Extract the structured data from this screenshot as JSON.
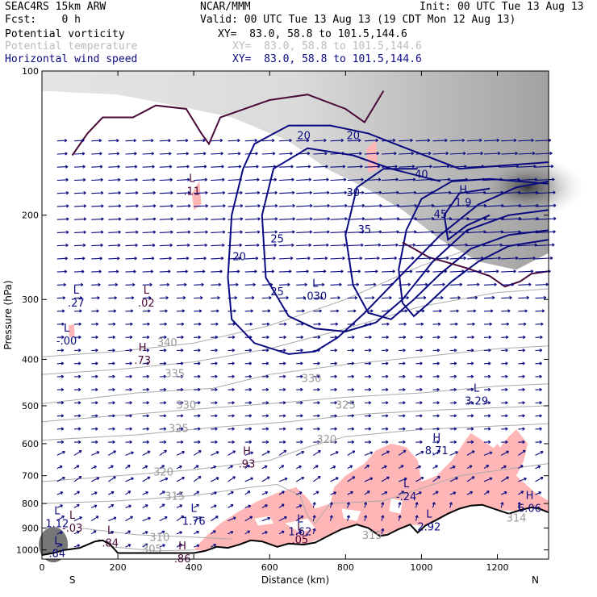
{
  "header": {
    "model": "SEAC4RS 15km ARW",
    "org": "NCAR/MMM",
    "init": "Init: 00 UTC Tue 13 Aug 13",
    "fcst": "Fcst:    0 h",
    "valid": "Valid: 00 UTC Tue 13 Aug 13 (19 CDT Mon 12 Aug 13)",
    "rows": [
      {
        "label": "Potential vorticity",
        "xy": "XY=  83.0, 58.8 to 101.5,144.6",
        "color": "#000000"
      },
      {
        "label": "Potential temperature",
        "xy": "XY=  83.0, 58.8 to 101.5,144.6",
        "color": "#bbbbbb"
      },
      {
        "label": "Horizontal wind speed",
        "xy": "XY=  83.0, 58.8 to 101.5,144.6",
        "color": "#0a0a80"
      }
    ]
  },
  "chart_data": {
    "type": "cross-section",
    "xlabel": "Distance (km)",
    "ylabel": "Pressure (hPa)",
    "x_ticks": [
      0,
      200,
      400,
      600,
      800,
      1000,
      1200
    ],
    "y_ticks": [
      100,
      200,
      300,
      400,
      500,
      600,
      700,
      800,
      900,
      1000
    ],
    "xlim": [
      0,
      1335
    ],
    "ylim": [
      100,
      1045
    ],
    "y_scale": "log",
    "end_labels": {
      "left": "S",
      "right": "N"
    },
    "colors": {
      "wind": "#0a0a80",
      "theta": "#aaaaaa",
      "pv": "#4a0a3a",
      "shade": "#ffb6b6",
      "terrain_line": "#000000"
    },
    "theta_labels": [
      {
        "text": "340",
        "x": 330,
        "p": 370
      },
      {
        "text": "335",
        "x": 350,
        "p": 430
      },
      {
        "text": "330",
        "x": 380,
        "p": 500
      },
      {
        "text": "325",
        "x": 360,
        "p": 560
      },
      {
        "text": "320",
        "x": 320,
        "p": 690
      },
      {
        "text": "315",
        "x": 350,
        "p": 775
      },
      {
        "text": "310",
        "x": 310,
        "p": 945
      },
      {
        "text": "305",
        "x": 290,
        "p": 1000
      },
      {
        "text": "330",
        "x": 710,
        "p": 440
      },
      {
        "text": "325",
        "x": 800,
        "p": 500
      },
      {
        "text": "320",
        "x": 750,
        "p": 590
      },
      {
        "text": "315",
        "x": 870,
        "p": 935
      },
      {
        "text": "314",
        "x": 1250,
        "p": 860
      }
    ],
    "wind_labels": [
      {
        "text": "20",
        "x": 690,
        "p": 137
      },
      {
        "text": "25",
        "x": 620,
        "p": 225
      },
      {
        "text": "25",
        "x": 620,
        "p": 290
      },
      {
        "text": "20",
        "x": 520,
        "p": 245
      },
      {
        "text": "30",
        "x": 820,
        "p": 180
      },
      {
        "text": "35",
        "x": 850,
        "p": 215
      },
      {
        "text": "40",
        "x": 1000,
        "p": 165
      },
      {
        "text": "45",
        "x": 1050,
        "p": 200
      },
      {
        "text": "20",
        "x": 820,
        "p": 137
      }
    ],
    "extrema": [
      {
        "kind": "L",
        "value": ".27",
        "x": 90,
        "p": 300,
        "color": "#0a0a80"
      },
      {
        "kind": "L",
        "value": ".02",
        "x": 275,
        "p": 300,
        "color": "#4a0a3a"
      },
      {
        "kind": "L",
        "value": "-.00",
        "x": 65,
        "p": 360,
        "color": "#0a0a80"
      },
      {
        "kind": "H",
        "value": ".73",
        "x": 265,
        "p": 395,
        "color": "#4a0a3a"
      },
      {
        "kind": "L",
        "value": ".11",
        "x": 395,
        "p": 175,
        "color": "#4a0a3a"
      },
      {
        "kind": "L",
        "value": ".030",
        "x": 720,
        "p": 290,
        "color": "#0a0a80"
      },
      {
        "kind": "H",
        "value": "1.9",
        "x": 1110,
        "p": 185,
        "color": "#0a0a80"
      },
      {
        "kind": "L",
        "value": "3.29",
        "x": 1145,
        "p": 480,
        "color": "#0a0a80"
      },
      {
        "kind": "H",
        "value": "8.71",
        "x": 1040,
        "p": 610,
        "color": "#0a0a80"
      },
      {
        "kind": "H",
        "value": ".93",
        "x": 540,
        "p": 650,
        "color": "#4a0a3a"
      },
      {
        "kind": "L",
        "value": "-.24",
        "x": 960,
        "p": 760,
        "color": "#0a0a80"
      },
      {
        "kind": "H",
        "value": "6.06",
        "x": 1285,
        "p": 805,
        "color": "#0a0a80"
      },
      {
        "kind": "L",
        "value": "1.12",
        "x": 40,
        "p": 865,
        "color": "#0a0a80"
      },
      {
        "kind": "L",
        "value": "-.03",
        "x": 80,
        "p": 885,
        "color": "#4a0a3a"
      },
      {
        "kind": "L",
        "value": "1.76",
        "x": 400,
        "p": 855,
        "color": "#0a0a80"
      },
      {
        "kind": "L",
        "value": "1.62",
        "x": 680,
        "p": 900,
        "color": "#0a0a80"
      },
      {
        "kind": "L",
        "value": ".05",
        "x": 680,
        "p": 935,
        "color": "#4a0a3a"
      },
      {
        "kind": "L",
        "value": "2.92",
        "x": 1020,
        "p": 880,
        "color": "#0a0a80"
      },
      {
        "kind": "L",
        "value": ".84",
        "x": 180,
        "p": 950,
        "color": "#4a0a3a"
      },
      {
        "kind": "L",
        "value": ".84",
        "x": 40,
        "p": 1000,
        "color": "#0a0a80"
      },
      {
        "kind": "H",
        "value": ".86",
        "x": 370,
        "p": 1025,
        "color": "#4a0a3a"
      }
    ],
    "terrain": [
      [
        0,
        1025
      ],
      [
        30,
        1015
      ],
      [
        60,
        1000
      ],
      [
        100,
        990
      ],
      [
        140,
        960
      ],
      [
        160,
        955
      ],
      [
        180,
        975
      ],
      [
        200,
        1015
      ],
      [
        250,
        1015
      ],
      [
        300,
        1015
      ],
      [
        350,
        1015
      ],
      [
        400,
        1015
      ],
      [
        430,
        1005
      ],
      [
        460,
        985
      ],
      [
        490,
        990
      ],
      [
        520,
        975
      ],
      [
        550,
        955
      ],
      [
        580,
        960
      ],
      [
        620,
        985
      ],
      [
        650,
        970
      ],
      [
        690,
        975
      ],
      [
        720,
        965
      ],
      [
        760,
        930
      ],
      [
        790,
        905
      ],
      [
        830,
        885
      ],
      [
        860,
        900
      ],
      [
        890,
        935
      ],
      [
        910,
        930
      ],
      [
        940,
        905
      ],
      [
        970,
        885
      ],
      [
        990,
        920
      ],
      [
        1010,
        890
      ],
      [
        1040,
        865
      ],
      [
        1070,
        840
      ],
      [
        1100,
        820
      ],
      [
        1130,
        808
      ],
      [
        1160,
        805
      ],
      [
        1200,
        825
      ],
      [
        1230,
        840
      ],
      [
        1260,
        826
      ],
      [
        1290,
        815
      ],
      [
        1310,
        820
      ],
      [
        1335,
        835
      ]
    ]
  }
}
